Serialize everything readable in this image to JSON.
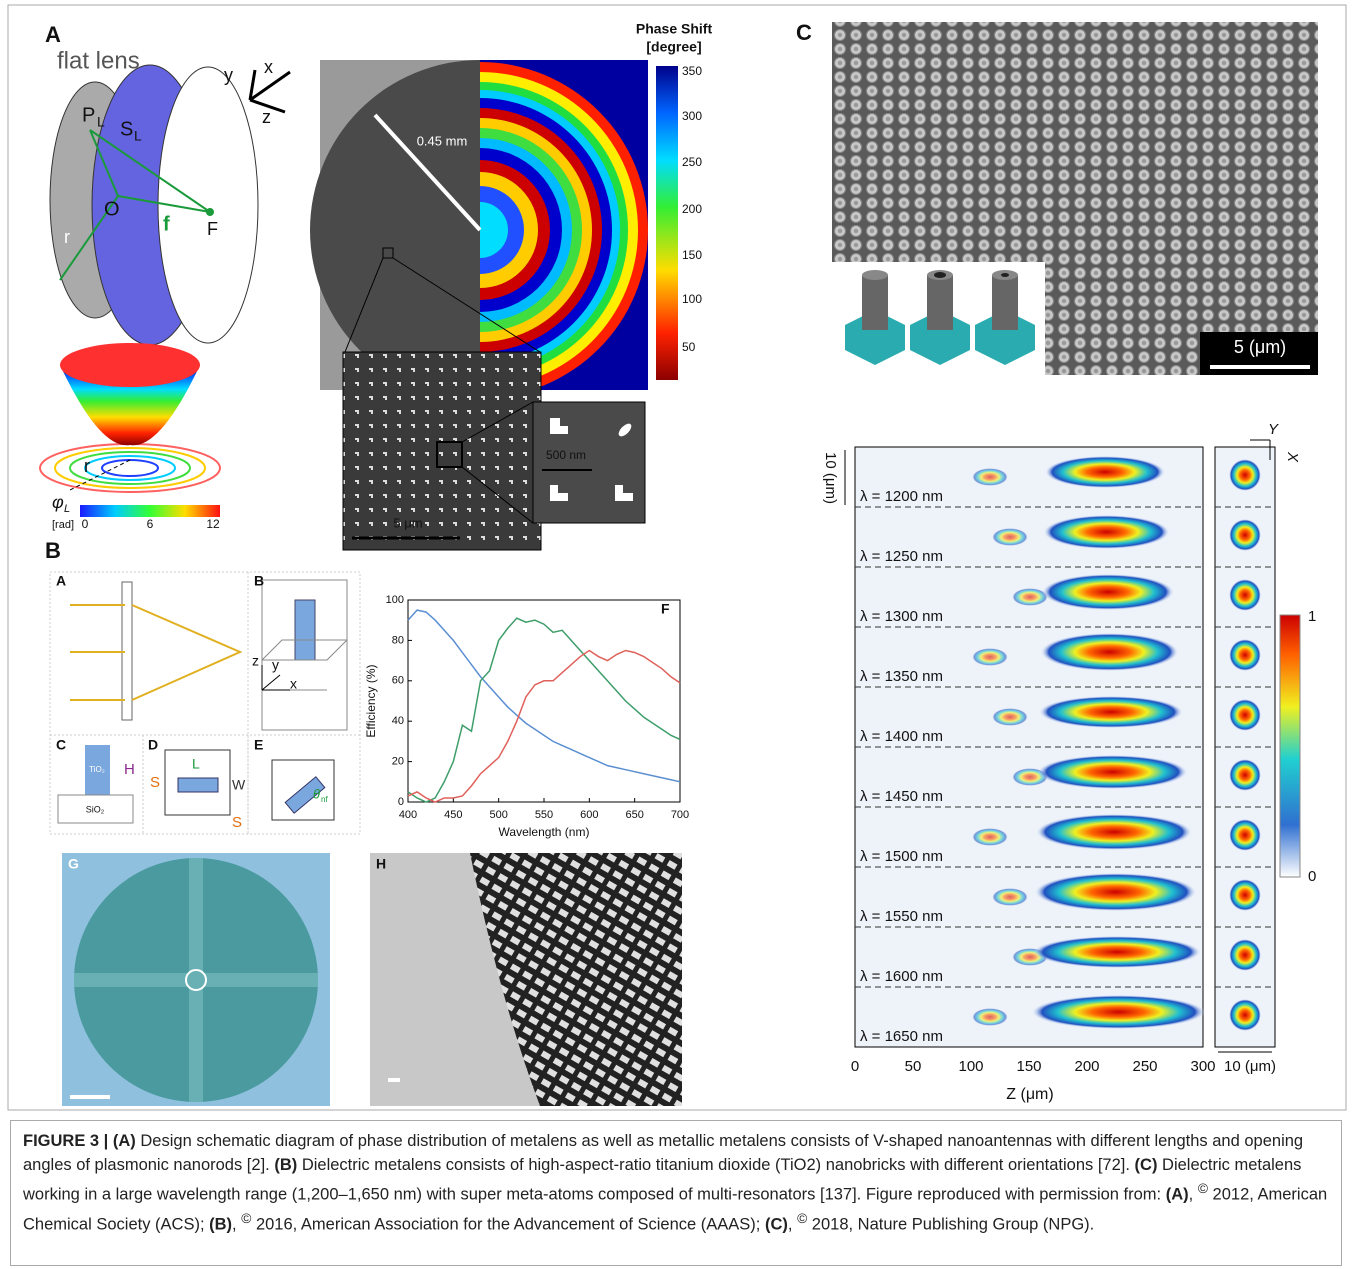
{
  "panel_a": {
    "label": "A",
    "title": "flat lens",
    "axes": [
      "y",
      "x",
      "z"
    ],
    "lens_labels": {
      "p": "P",
      "p_sub": "L",
      "s": "S",
      "s_sub": "L",
      "o": "O",
      "r": "r",
      "f": "f",
      "focus": "F"
    },
    "phase_title": "Phase Shift",
    "phase_unit": "[degree]",
    "phase_ticks": [
      "350",
      "300",
      "250",
      "200",
      "150",
      "100",
      "50"
    ],
    "radius": "0.45 mm",
    "scale_500": "500 nm",
    "scale_5": "5 μm",
    "bowl_r": "r",
    "phi": "φ",
    "phi_sub": "L",
    "rad_unit": "[rad]",
    "rad_ticks": [
      "0",
      "6",
      "12"
    ]
  },
  "panel_b": {
    "label": "B",
    "sub_labels": [
      "A",
      "B",
      "C",
      "D",
      "E",
      "F",
      "G",
      "H"
    ],
    "tio2": "TiO₂",
    "sio2": "SiO₂",
    "height": "H",
    "period": "S",
    "length": "L",
    "width": "W",
    "period2": "S",
    "theta": "θ",
    "theta_sub": "nf",
    "axes": [
      "z",
      "y",
      "x"
    ],
    "plot": {
      "ylabel": "Efficiency (%)",
      "xlabel": "Wavelength (nm)",
      "xlim": [
        400,
        700
      ],
      "ylim": [
        0,
        100
      ],
      "xticks": [
        400,
        450,
        500,
        550,
        600,
        650,
        700
      ],
      "yticks": [
        0,
        20,
        40,
        60,
        80,
        100
      ],
      "x": [
        400,
        410,
        420,
        430,
        440,
        450,
        460,
        470,
        480,
        490,
        500,
        510,
        520,
        530,
        540,
        550,
        560,
        570,
        580,
        590,
        600,
        610,
        620,
        630,
        640,
        650,
        660,
        670,
        680,
        690,
        700
      ],
      "series": [
        {
          "color": "#5b8fd1",
          "values": [
            90,
            95,
            94,
            90,
            85,
            80,
            74,
            68,
            62,
            57,
            52,
            47,
            43,
            39,
            36,
            33,
            30,
            28,
            26,
            24,
            22,
            20,
            18,
            17,
            16,
            15,
            14,
            13,
            12,
            11,
            10
          ]
        },
        {
          "color": "#3e9e6a",
          "values": [
            5,
            2,
            0,
            2,
            10,
            20,
            38,
            35,
            60,
            65,
            80,
            86,
            91,
            89,
            90,
            88,
            84,
            85,
            80,
            75,
            70,
            65,
            60,
            55,
            50,
            46,
            42,
            39,
            36,
            33,
            31
          ]
        },
        {
          "color": "#e0605a",
          "values": [
            3,
            5,
            2,
            0,
            2,
            2,
            3,
            8,
            14,
            18,
            22,
            30,
            40,
            52,
            58,
            60,
            60,
            64,
            68,
            72,
            75,
            72,
            70,
            73,
            75,
            74,
            72,
            69,
            66,
            62,
            59
          ]
        }
      ]
    }
  },
  "panel_c": {
    "label": "C",
    "scale": "5 (μm)",
    "y_scale": "10 (μm)",
    "axes": [
      "Y",
      "X"
    ],
    "wavelengths": [
      "λ = 1200 nm",
      "λ = 1250 nm",
      "λ = 1300 nm",
      "λ = 1350 nm",
      "λ = 1400 nm",
      "λ = 1450 nm",
      "λ = 1500 nm",
      "λ = 1550 nm",
      "λ = 1600 nm",
      "λ = 1650 nm"
    ],
    "z_ticks": [
      "0",
      "50",
      "100",
      "150",
      "200",
      "250",
      "300"
    ],
    "z_label": "Z (μm)",
    "x_scale": "10 (μm)",
    "colorbar": [
      "1",
      "0"
    ]
  },
  "caption": [
    {
      "text": "FIGURE 3 | (A)",
      "bold": true
    },
    {
      "text": " Design schematic diagram of phase distribution of metalens as well as metallic metalens consists of V-shaped nanoantennas with different lengths and opening angles of plasmonic nanorods [2]. "
    },
    {
      "text": "(B)",
      "bold": true
    },
    {
      "text": " Dielectric metalens consists of high-aspect-ratio titanium dioxide (TiO2) nanobricks with different orientations [72]. "
    },
    {
      "text": "(C)",
      "bold": true
    },
    {
      "text": " Dielectric metalens working in a large wavelength range (1,200–1,650 nm) with super meta-atoms composed of multi-resonators [137]. Figure reproduced with permission from: "
    },
    {
      "text": "(A)",
      "bold": true
    },
    {
      "text": ", "
    },
    {
      "text": "©",
      "sup": true
    },
    {
      "text": " 2012, American Chemical Society (ACS); "
    },
    {
      "text": "(B)",
      "bold": true
    },
    {
      "text": ", "
    },
    {
      "text": "©",
      "sup": true
    },
    {
      "text": " 2016, American Association for the Advancement of Science (AAAS); "
    },
    {
      "text": "(C)",
      "bold": true
    },
    {
      "text": ", "
    },
    {
      "text": "©",
      "sup": true
    },
    {
      "text": " 2018, Nature Publishing Group (NPG)."
    }
  ]
}
